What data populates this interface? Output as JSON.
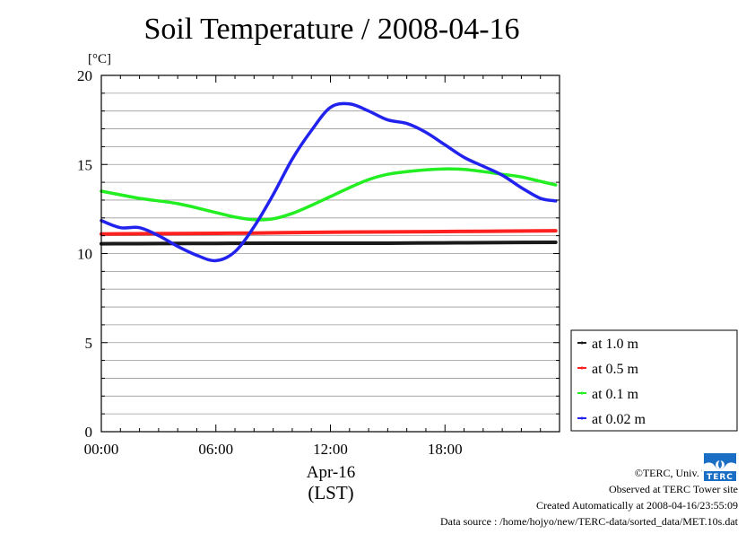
{
  "title": "Soil Temperature / 2008-04-16",
  "chart_data": {
    "type": "line",
    "title": "Soil Temperature / 2008-04-16",
    "ylabel": "[°C]",
    "xlabel": "(LST)",
    "x_date_label": "Apr-16",
    "ylim": [
      0,
      20
    ],
    "xlim": [
      0,
      24
    ],
    "x_ticks": [
      0,
      6,
      12,
      18
    ],
    "x_tick_labels": [
      "00:00",
      "06:00",
      "12:00",
      "18:00"
    ],
    "y_ticks": [
      0,
      5,
      10,
      15,
      20
    ],
    "y_tick_labels": [
      "0",
      "5",
      "10",
      "15",
      "20"
    ],
    "grid": true,
    "legend_position": "right",
    "x_unit": "hour",
    "series": [
      {
        "name": "at 1.0 m",
        "color": "#1a1a1a",
        "x": [
          0,
          3,
          6,
          9,
          12,
          15,
          18,
          21,
          23.8
        ],
        "y": [
          10.55,
          10.56,
          10.57,
          10.58,
          10.58,
          10.58,
          10.6,
          10.62,
          10.63
        ]
      },
      {
        "name": "at 0.5 m",
        "color": "#ff2020",
        "x": [
          0,
          4,
          8,
          12,
          16,
          20,
          23.8
        ],
        "y": [
          11.1,
          11.12,
          11.15,
          11.2,
          11.22,
          11.25,
          11.28
        ]
      },
      {
        "name": "at 0.1 m",
        "color": "#22ee22",
        "x": [
          0,
          2,
          4,
          6,
          7,
          8,
          9,
          10,
          11,
          12,
          13,
          14,
          15,
          16,
          17,
          18,
          19,
          20,
          21,
          22,
          23,
          23.8
        ],
        "y": [
          13.5,
          13.1,
          12.8,
          12.3,
          12.05,
          11.9,
          11.95,
          12.25,
          12.7,
          13.2,
          13.7,
          14.15,
          14.45,
          14.6,
          14.7,
          14.75,
          14.72,
          14.6,
          14.45,
          14.3,
          14.05,
          13.85
        ]
      },
      {
        "name": "at 0.02 m",
        "color": "#2222ee",
        "x": [
          0,
          1,
          2,
          3,
          4,
          5,
          6,
          7,
          8,
          9,
          10,
          11,
          12,
          13,
          14,
          15,
          16,
          17,
          18,
          19,
          20,
          21,
          22,
          23,
          23.8
        ],
        "y": [
          11.85,
          11.45,
          11.45,
          11.0,
          10.4,
          9.9,
          9.6,
          10.1,
          11.5,
          13.3,
          15.3,
          16.9,
          18.2,
          18.4,
          18.0,
          17.5,
          17.3,
          16.8,
          16.1,
          15.4,
          14.9,
          14.4,
          13.7,
          13.1,
          12.95
        ]
      }
    ]
  },
  "credits": {
    "copyright": "©TERC, Univ. Tsukuba",
    "observed": "Observed at TERC Tower site",
    "created": "Created Automatically at 2008-04-16/23:55:09",
    "source": "Data source : /home/hojyo/new/TERC-data/sorted_data/MET.10s.dat"
  },
  "logo": {
    "text": "TERC",
    "color": "#1a6fc4"
  }
}
